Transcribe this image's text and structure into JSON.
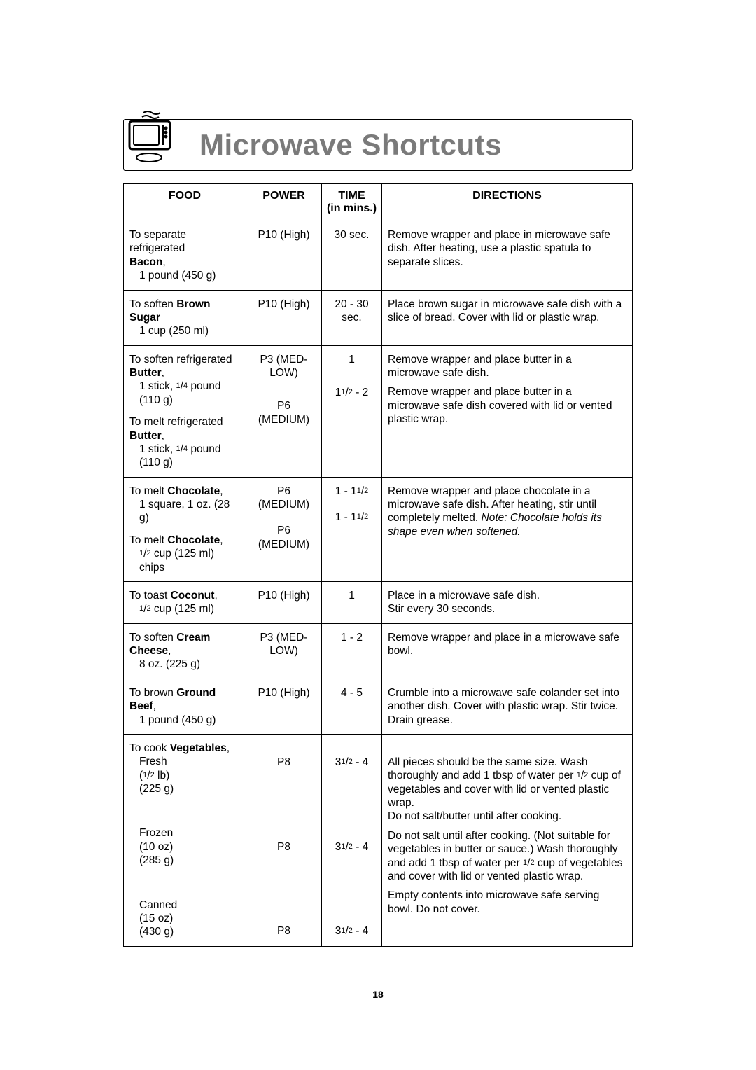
{
  "title": "Microwave Shortcuts",
  "headers": {
    "food": "FOOD",
    "power": "POWER",
    "time_line1": "TIME",
    "time_line2": "(in mins.)",
    "directions": "DIRECTIONS"
  },
  "rows": [
    {
      "food_html": "To separate refrigerated<br><b>Bacon</b>,<br><span class=\"indent\">1 pound (450 g)</span>",
      "power": "P10 (High)",
      "time": "30 sec.",
      "dir_html": "Remove wrapper and place in microwave safe dish. After heating, use a plastic spatula to separate slices."
    },
    {
      "food_html": "To soften <b>Brown Sugar</b><br><span class=\"indent\">1 cup (250 ml)</span>",
      "power": "P10 (High)",
      "time": "20 - 30 sec.",
      "dir_html": "Place brown sugar in microwave safe dish with a slice of bread. Cover with lid or plastic wrap."
    },
    {
      "multi": true,
      "food_html": "<div>To soften refrigerated <b>Butter</b>,<br><span class=\"indent\">1 stick, <span class=\"small-frac\">1</span>/<span class=\"small-frac\">4</span> pound (110 g)</span></div><div>To melt refrigerated <b>Butter</b>,<br><span class=\"indent\">1 stick, <span class=\"small-frac\">1</span>/<span class=\"small-frac\">4</span> pound (110 g)</span></div>",
      "power_html": "<div>P3 (MED-LOW)</div><div style=\"margin-top:28px\">P6 (MEDIUM)</div>",
      "time_html": "<div>1</div><div style=\"margin-top:28px\">1<span class=\"small-frac\">1</span>/<span class=\"small-frac\">2</span> - 2</div>",
      "dir_html": "<div>Remove wrapper and place butter in a microwave safe dish.</div><div style=\"margin-top:8px\">Remove wrapper and place butter in a microwave safe dish covered with lid or vented plastic wrap.</div>"
    },
    {
      "multi": true,
      "food_html": "<div>To melt <b>Chocolate</b>,<br><span class=\"indent\">1 square, 1 oz. (28 g)</span></div><div style=\"margin-top:0\">To melt <b>Chocolate</b>,<br><span class=\"indent\"><span class=\"small-frac\">1</span>/<span class=\"small-frac\">2</span> cup  (125 ml) chips</span></div>",
      "power_html": "<div>P6 (MEDIUM)</div><div style=\"margin-top:18px\">P6 (MEDIUM)</div>",
      "time_html": "<div>1 - 1<span class=\"small-frac\">1</span>/<span class=\"small-frac\">2</span></div><div style=\"margin-top:18px\">1 - 1<span class=\"small-frac\">1</span>/<span class=\"small-frac\">2</span></div>",
      "dir_html": "Remove wrapper and place chocolate in a microwave safe dish. After heating, stir until completely melted. <i>Note: Chocolate holds its shape even when softened.</i>"
    },
    {
      "food_html": "To toast <b>Coconut</b>,<br><span class=\"indent\"><span class=\"small-frac\">1</span>/<span class=\"small-frac\">2</span> cup (125 ml)</span>",
      "power": "P10 (High)",
      "time": "1",
      "dir_html": "Place in a microwave safe dish.<br>Stir every 30 seconds."
    },
    {
      "food_html": "To soften <b>Cream Cheese</b>,<br><span class=\"indent\">8 oz. (225 g)</span>",
      "power": "P3 (MED-LOW)",
      "time": "1 - 2",
      "dir_html": "Remove wrapper and place in a microwave safe bowl."
    },
    {
      "food_html": "To brown <b>Ground Beef</b>,<br><span class=\"indent\">1 pound (450 g)</span>",
      "power": "P10 (High)",
      "time": "4 - 5",
      "dir_html": "Crumble into a microwave safe colander set into another dish. Cover with plastic wrap. Stir twice. Drain grease."
    },
    {
      "multi": true,
      "food_html": "<div>To cook <b>Vegetables</b>,<br><span class=\"indent\">Fresh<br>(<span class=\"small-frac\">1</span>/<span class=\"small-frac\">2</span> lb)<br>(225 g)</span></div><div style=\"margin-top:44px\"><span class=\"indent\">Frozen<br>(10 oz)<br>(285 g)</span></div><div style=\"margin-top:44px\"><span class=\"indent\">Canned<br>(15 oz)<br>(430 g)</span></div>",
      "power_html": "<div style=\"margin-top:20px\">P8</div><div style=\"margin-top:102px\">P8</div><div style=\"margin-top:100px\">P8</div>",
      "time_html": "<div style=\"margin-top:20px\">3<span class=\"small-frac\">1</span>/<span class=\"small-frac\">2</span> - 4</div><div style=\"margin-top:102px\">3<span class=\"small-frac\">1</span>/<span class=\"small-frac\">2</span> - 4</div><div style=\"margin-top:100px\">3<span class=\"small-frac\">1</span>/<span class=\"small-frac\">2</span> - 4</div>",
      "dir_html": "<div style=\"margin-top:20px\">All pieces should be the same size. Wash thoroughly and add 1 tbsp of water per <span class=\"small-frac\">1</span>/<span class=\"small-frac\">2</span> cup of vegetables and cover with lid or vented plastic wrap.<br>Do not salt/butter until after cooking.</div><div style=\"margin-top:8px\">Do not salt until after cooking. (Not suitable for vegetables in butter or sauce.) Wash thoroughly and add 1 tbsp of water per <span class=\"small-frac\">1</span>/<span class=\"small-frac\">2</span> cup of vegetables and cover with lid or vented plastic wrap.</div><div style=\"margin-top:8px\">Empty contents into microwave safe serving bowl. Do not cover.</div>"
    }
  ],
  "page_number": "18"
}
